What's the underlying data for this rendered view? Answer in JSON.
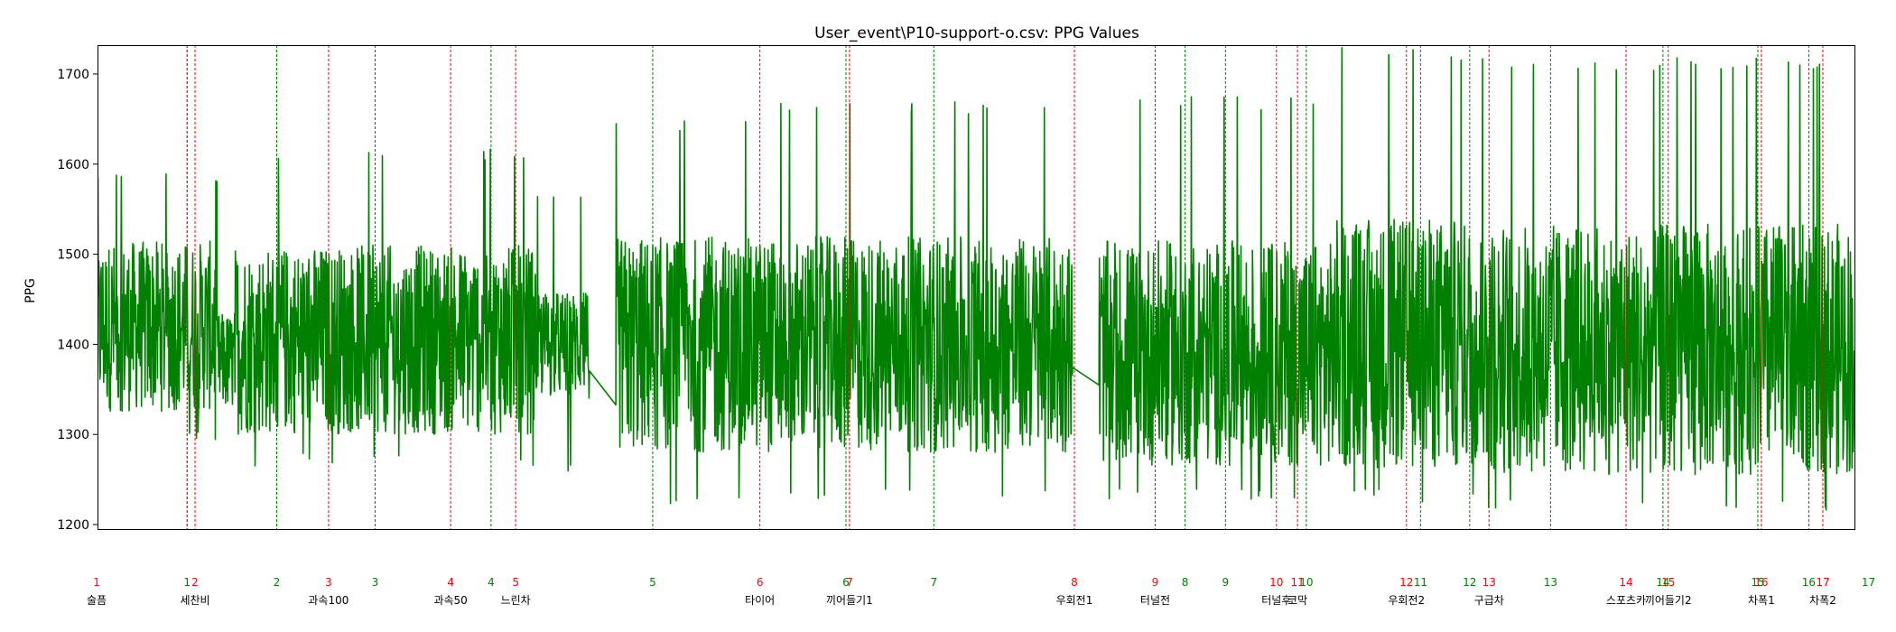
{
  "chart_data": {
    "type": "line",
    "title": "User_event\\P10-support-o.csv: PPG Values",
    "xlabel": "",
    "ylabel": "PPG",
    "ylim": [
      1195,
      1732
    ],
    "xlim": [
      0,
      100
    ],
    "yticks": [
      1200,
      1300,
      1400,
      1500,
      1600,
      1700
    ],
    "grid": false,
    "line_color": "#008000",
    "series": [
      {
        "segments": [
          {
            "x0": 0.0,
            "x1": 6.8,
            "center": 1420,
            "amp": 95,
            "peak": 1595,
            "trough": 1290
          },
          {
            "x0": 6.8,
            "x1": 7.8,
            "center": 1380,
            "amp": 55,
            "peak": 1440,
            "trough": 1310
          },
          {
            "x0": 7.8,
            "x1": 25.0,
            "center": 1405,
            "amp": 105,
            "peak": 1618,
            "trough": 1265
          },
          {
            "x0": 25.0,
            "x1": 28.0,
            "center": 1400,
            "amp": 60,
            "peak": 1565,
            "trough": 1255
          },
          {
            "x0": 29.5,
            "x1": 38.5,
            "center": 1400,
            "amp": 120,
            "peak": 1650,
            "trough": 1220
          },
          {
            "x0": 38.5,
            "x1": 55.5,
            "center": 1400,
            "amp": 120,
            "peak": 1670,
            "trough": 1225
          },
          {
            "x0": 57.0,
            "x1": 70.5,
            "center": 1390,
            "amp": 125,
            "peak": 1675,
            "trough": 1225
          },
          {
            "x0": 70.5,
            "x1": 78.5,
            "center": 1400,
            "amp": 140,
            "peak": 1730,
            "trough": 1225
          },
          {
            "x0": 78.5,
            "x1": 100.0,
            "center": 1395,
            "amp": 140,
            "peak": 1718,
            "trough": 1215
          }
        ]
      }
    ],
    "markers_red": [
      {
        "label": "1",
        "x": 5.1
      },
      {
        "label": "2",
        "x": 5.55
      },
      {
        "label": "3",
        "x": 13.15
      },
      {
        "label": "4",
        "x": 20.1
      },
      {
        "label": "5",
        "x": 23.8
      },
      {
        "label": "6",
        "x": 37.7
      },
      {
        "label": "7",
        "x": 42.8
      },
      {
        "label": "8",
        "x": 55.6
      },
      {
        "label": "9",
        "x": 60.2
      },
      {
        "label": "10",
        "x": 67.1
      },
      {
        "label": "11",
        "x": 68.3
      },
      {
        "label": "12",
        "x": 74.5
      },
      {
        "label": "13",
        "x": 79.2
      },
      {
        "label": "14",
        "x": 87.0
      },
      {
        "label": "15",
        "x": 89.4
      },
      {
        "label": "16",
        "x": 94.7
      },
      {
        "label": "17",
        "x": 98.2
      }
    ],
    "markers_green": [
      {
        "label": "1",
        "x": 5.1
      },
      {
        "label": "2",
        "x": 10.2
      },
      {
        "label": "3",
        "x": 15.8
      },
      {
        "label": "4",
        "x": 22.4
      },
      {
        "label": "5",
        "x": 31.6
      },
      {
        "label": "6",
        "x": 42.6
      },
      {
        "label": "7",
        "x": 47.6
      },
      {
        "label": "8",
        "x": 61.9
      },
      {
        "label": "9",
        "x": 64.2
      },
      {
        "label": "10",
        "x": 68.8
      },
      {
        "label": "11",
        "x": 75.3
      },
      {
        "label": "12",
        "x": 78.1
      },
      {
        "label": "13",
        "x": 82.7
      },
      {
        "label": "14",
        "x": 89.1
      },
      {
        "label": "15",
        "x": 94.5
      },
      {
        "label": "16",
        "x": 97.4
      },
      {
        "label": "17",
        "x": 100.8
      }
    ],
    "red_label_x_adjust": [
      {
        "label": "1",
        "x": -0.05
      }
    ],
    "event_labels": [
      {
        "text": "술픔",
        "x": -0.05
      },
      {
        "text": "세찬비",
        "x": 5.55
      },
      {
        "text": "과속100",
        "x": 13.15
      },
      {
        "text": "과속50",
        "x": 20.1
      },
      {
        "text": "느린차",
        "x": 23.8
      },
      {
        "text": "타이어",
        "x": 37.7
      },
      {
        "text": "끼어들기1",
        "x": 42.8
      },
      {
        "text": "우회전1",
        "x": 55.6
      },
      {
        "text": "터널전",
        "x": 60.2
      },
      {
        "text": "터널후",
        "x": 67.1
      },
      {
        "text": "코막",
        "x": 68.3
      },
      {
        "text": "우회전2",
        "x": 74.5
      },
      {
        "text": "구급차",
        "x": 79.2
      },
      {
        "text": "스포츠카",
        "x": 87.0
      },
      {
        "text": "끼어들기2",
        "x": 89.4
      },
      {
        "text": "차폭1",
        "x": 94.7
      },
      {
        "text": "차폭2",
        "x": 98.2
      }
    ]
  }
}
